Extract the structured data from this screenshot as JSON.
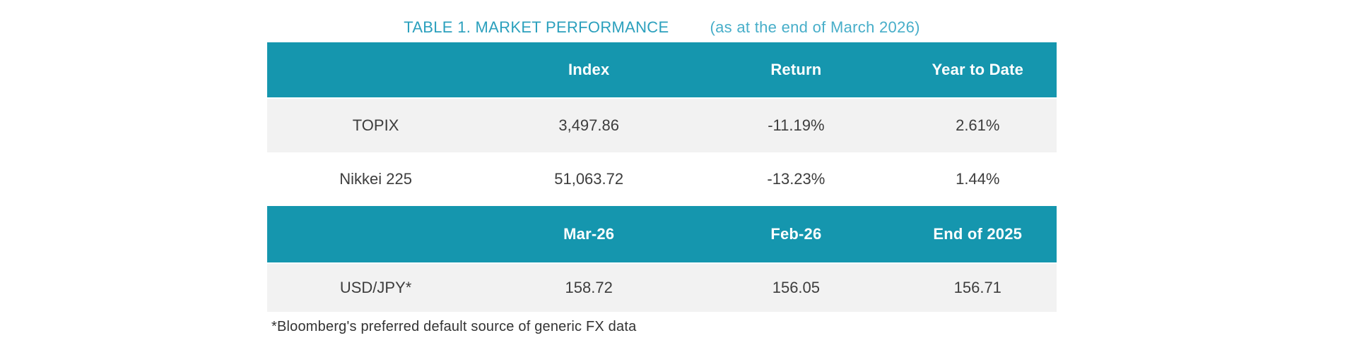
{
  "title": {
    "main": "TABLE 1. MARKET PERFORMANCE",
    "suffix": "(as at the end of March 2026)"
  },
  "colors": {
    "header_bg": "#1596AE",
    "row_alt_bg": "#F2F2F2",
    "row_bg": "#FFFFFF",
    "header_text": "#FFFFFF",
    "body_text": "#3D3D3D",
    "title_main": "#2BA0BD",
    "title_suffix": "#47AEC9"
  },
  "table1": {
    "headers": [
      "",
      "Index",
      "Return",
      "Year to Date"
    ],
    "rows": [
      [
        "TOPIX",
        "3,497.86",
        "-11.19%",
        "2.61%"
      ],
      [
        "Nikkei 225",
        "51,063.72",
        "-13.23%",
        "1.44%"
      ]
    ]
  },
  "table2": {
    "headers": [
      "",
      "Mar-26",
      "Feb-26",
      "End of 2025"
    ],
    "rows": [
      [
        "USD/JPY*",
        "158.72",
        "156.05",
        "156.71"
      ]
    ]
  },
  "footnote": "*Bloomberg's preferred default source of generic FX data"
}
